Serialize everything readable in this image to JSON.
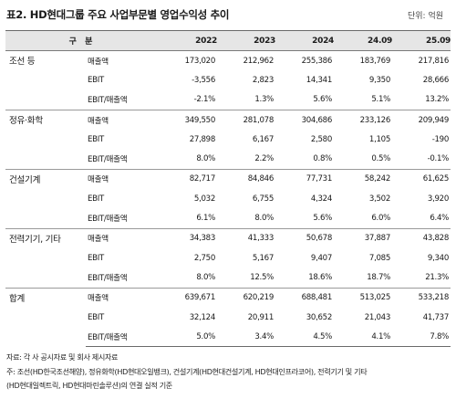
{
  "title": "표2. HD현대그룹 주요 사업부문별 영업수익성 추이",
  "unit": "단위: 억원",
  "table": {
    "header": {
      "label": "구 분",
      "years": [
        "2022",
        "2023",
        "2024",
        "24.09",
        "25.09"
      ]
    },
    "groups": [
      {
        "segment": "조선 등",
        "rows": [
          {
            "metric": "매출액",
            "values": [
              "173,020",
              "212,962",
              "255,386",
              "183,769",
              "217,816"
            ]
          },
          {
            "metric": "EBIT",
            "values": [
              "-3,556",
              "2,823",
              "14,341",
              "9,350",
              "28,666"
            ]
          },
          {
            "metric": "EBIT/매출액",
            "values": [
              "-2.1%",
              "1.3%",
              "5.6%",
              "5.1%",
              "13.2%"
            ]
          }
        ]
      },
      {
        "segment": "정유·화학",
        "rows": [
          {
            "metric": "매출액",
            "values": [
              "349,550",
              "281,078",
              "304,686",
              "233,126",
              "209,949"
            ]
          },
          {
            "metric": "EBIT",
            "values": [
              "27,898",
              "6,167",
              "2,580",
              "1,105",
              "-190"
            ]
          },
          {
            "metric": "EBIT/매출액",
            "values": [
              "8.0%",
              "2.2%",
              "0.8%",
              "0.5%",
              "-0.1%"
            ]
          }
        ]
      },
      {
        "segment": "건설기계",
        "rows": [
          {
            "metric": "매출액",
            "values": [
              "82,717",
              "84,846",
              "77,731",
              "58,242",
              "61,625"
            ]
          },
          {
            "metric": "EBIT",
            "values": [
              "5,032",
              "6,755",
              "4,324",
              "3,502",
              "3,920"
            ]
          },
          {
            "metric": "EBIT/매출액",
            "values": [
              "6.1%",
              "8.0%",
              "5.6%",
              "6.0%",
              "6.4%"
            ]
          }
        ]
      },
      {
        "segment": "전력기기, 기타",
        "rows": [
          {
            "metric": "매출액",
            "values": [
              "34,383",
              "41,333",
              "50,678",
              "37,887",
              "43,828"
            ]
          },
          {
            "metric": "EBIT",
            "values": [
              "2,750",
              "5,167",
              "9,407",
              "7,085",
              "9,340"
            ]
          },
          {
            "metric": "EBIT/매출액",
            "values": [
              "8.0%",
              "12.5%",
              "18.6%",
              "18.7%",
              "21.3%"
            ]
          }
        ]
      },
      {
        "segment": "합계",
        "rows": [
          {
            "metric": "매출액",
            "values": [
              "639,671",
              "620,219",
              "688,481",
              "513,025",
              "533,218"
            ]
          },
          {
            "metric": "EBIT",
            "values": [
              "32,124",
              "20,911",
              "30,652",
              "21,043",
              "41,737"
            ]
          },
          {
            "metric": "EBIT/매출액",
            "values": [
              "5.0%",
              "3.4%",
              "4.5%",
              "4.1%",
              "7.8%"
            ]
          }
        ]
      }
    ]
  },
  "notes": [
    "자료: 각 사 공시자료 및 회사 제시자료",
    "주: 조선(HD한국조선해양), 정유화학(HD현대오일뱅크), 건설기계(HD현대건설기계, HD현대인프라코어), 전력기기 및 기타",
    "(HD현대일렉트릭, HD현대마린솔루션)의 연결 실적 기준"
  ]
}
